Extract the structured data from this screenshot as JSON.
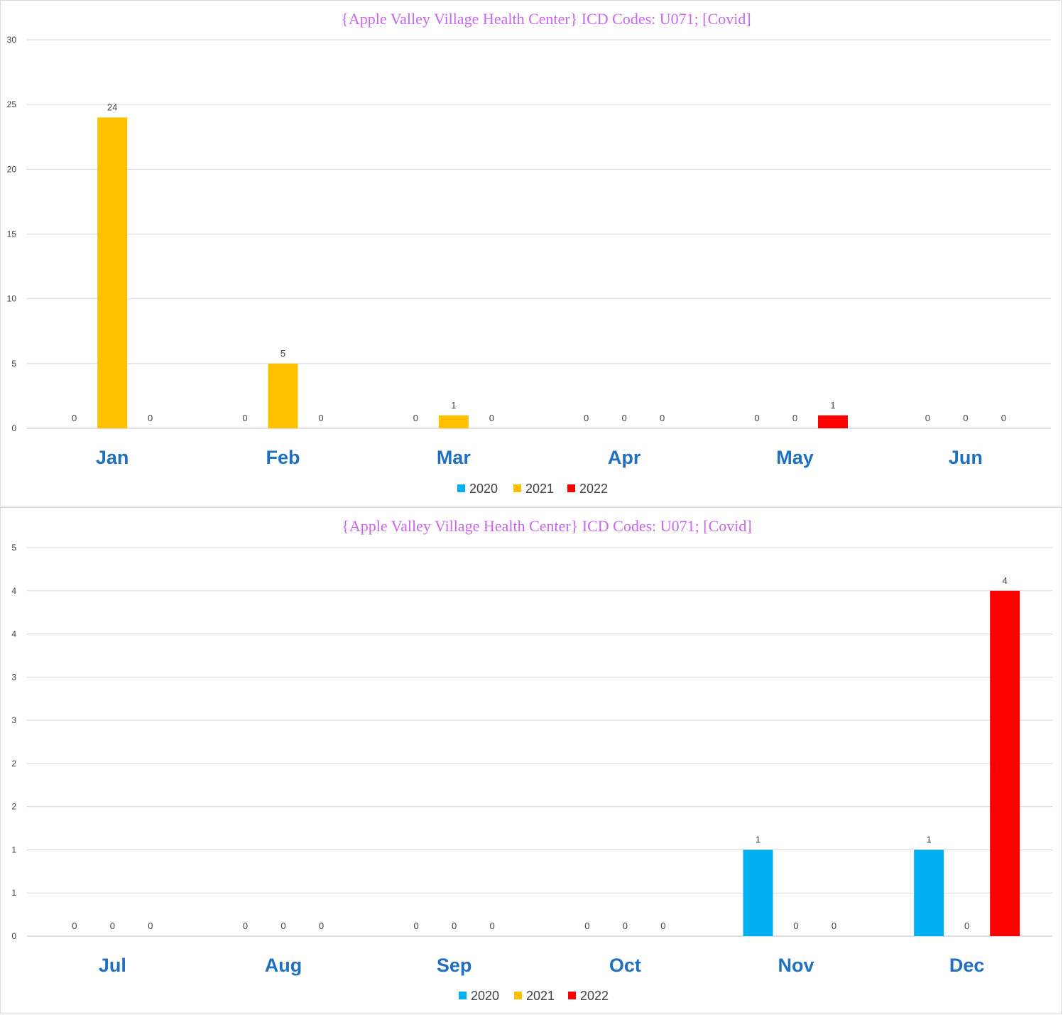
{
  "colors": {
    "2020": "#00b0f0",
    "2021": "#ffc000",
    "2022": "#ff0000"
  },
  "chart_data": [
    {
      "type": "bar",
      "title": "{Apple Valley  Village  Health  Center}  ICD Codes: U071;  [Covid]",
      "categories": [
        "Jan",
        "Feb",
        "Mar",
        "Apr",
        "May",
        "Jun"
      ],
      "series": [
        {
          "name": "2020",
          "values": [
            0,
            0,
            0,
            0,
            0,
            0
          ]
        },
        {
          "name": "2021",
          "values": [
            24,
            5,
            1,
            0,
            0,
            0
          ]
        },
        {
          "name": "2022",
          "values": [
            0,
            0,
            0,
            0,
            1,
            0
          ]
        }
      ],
      "ylim": [
        0,
        30
      ],
      "yticks": [
        0,
        5,
        10,
        15,
        20,
        25,
        30
      ],
      "ytick_labels": [
        "0",
        "5",
        "10",
        "15",
        "20",
        "25",
        "30"
      ],
      "grid": true,
      "legend": "bottom"
    },
    {
      "type": "bar",
      "title": "{Apple Valley  Village  Health  Center}  ICD Codes: U071;  [Covid]",
      "categories": [
        "Jul",
        "Aug",
        "Sep",
        "Oct",
        "Nov",
        "Dec"
      ],
      "series": [
        {
          "name": "2020",
          "values": [
            0,
            0,
            0,
            0,
            1,
            1
          ]
        },
        {
          "name": "2021",
          "values": [
            0,
            0,
            0,
            0,
            0,
            0
          ]
        },
        {
          "name": "2022",
          "values": [
            0,
            0,
            0,
            0,
            0,
            4
          ]
        }
      ],
      "ylim": [
        0,
        4.5
      ],
      "yticks": [
        0,
        0.5,
        1,
        1.5,
        2,
        2.5,
        3,
        3.5,
        4,
        4.5
      ],
      "ytick_labels": [
        "0",
        "1",
        "1",
        "2",
        "2",
        "3",
        "3",
        "4",
        "4",
        "5"
      ],
      "grid": true,
      "legend": "bottom"
    }
  ]
}
